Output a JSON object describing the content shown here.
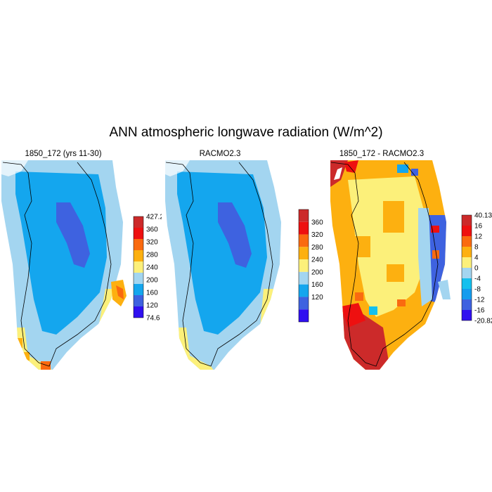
{
  "title": "ANN atmospheric longwave radiation (W/m^2)",
  "panels": [
    {
      "title": "1850_172 (yrs 11-30)",
      "colorbar": {
        "labels": [
          "427.2",
          "360",
          "320",
          "280",
          "240",
          "200",
          "160",
          "120",
          "74.6"
        ],
        "colors": [
          "#cc2a2a",
          "#ee1010",
          "#fa6a10",
          "#fdb010",
          "#fcf07a",
          "#a3d5f0",
          "#14a6ee",
          "#3e62e0",
          "#3010f0"
        ]
      }
    },
    {
      "title": "RACMO2.3",
      "colorbar": {
        "labels": [
          "360",
          "320",
          "280",
          "240",
          "200",
          "160",
          "120"
        ],
        "colors": [
          "#cc2a2a",
          "#ee1010",
          "#fa6a10",
          "#fdb010",
          "#fcf07a",
          "#a3d5f0",
          "#14a6ee",
          "#3e62e0",
          "#3010f0"
        ]
      }
    },
    {
      "title": "1850_172 - RACMO2.3",
      "colorbar": {
        "labels": [
          "40.13",
          "16",
          "12",
          "8",
          "4",
          "0",
          "-4",
          "-8",
          "-12",
          "-16",
          "-20.82"
        ],
        "colors": [
          "#cc2a2a",
          "#ee1010",
          "#fa6a10",
          "#fdb010",
          "#fcf07a",
          "#a3d5f0",
          "#14c0ee",
          "#149cee",
          "#3e62e0",
          "#3010f0"
        ]
      }
    }
  ]
}
